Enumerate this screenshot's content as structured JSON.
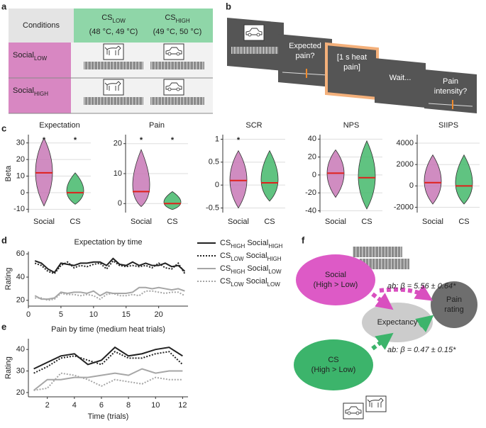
{
  "panels": [
    "a",
    "b",
    "c",
    "d",
    "e",
    "f"
  ],
  "table": {
    "header": [
      "Conditions",
      {
        "name": [
          "CS",
          "LOW"
        ],
        "temps": "(48 °C, 49 °C)"
      },
      {
        "name": [
          "CS",
          "HIGH"
        ],
        "temps": "(49 °C, 50 °C)"
      }
    ],
    "rows": [
      [
        "Social",
        "LOW"
      ],
      [
        "Social",
        "HIGH"
      ]
    ]
  },
  "screens": [
    {
      "lines": [
        "Expected",
        "pain?"
      ]
    },
    {
      "lines": [
        "[1 s heat",
        "pain]"
      ]
    },
    {
      "lines": [
        "Wait..."
      ]
    },
    {
      "lines": [
        "Pain",
        "intensity?"
      ]
    }
  ],
  "chart_data": [
    {
      "type": "violin",
      "title": "Expectation",
      "y_label": "Beta",
      "categories": [
        "Social",
        "CS"
      ],
      "medians": [
        12,
        0
      ],
      "mins": [
        -8,
        -7
      ],
      "maxs": [
        33,
        12
      ],
      "colors": [
        "#c878b6",
        "#44b86b"
      ],
      "annotations": [
        "*",
        "*"
      ],
      "ylim": [
        -12,
        35
      ],
      "yticks": [
        -10,
        0,
        10,
        20,
        30
      ],
      "grid": true
    },
    {
      "type": "violin",
      "title": "Pain",
      "categories": [
        "Social",
        "CS"
      ],
      "medians": [
        4,
        0
      ],
      "mins": [
        -1,
        -2
      ],
      "maxs": [
        18,
        4
      ],
      "colors": [
        "#c878b6",
        "#44b86b"
      ],
      "annotations": [
        "*",
        "*"
      ],
      "ylim": [
        -3,
        23
      ],
      "yticks": [
        0,
        10,
        20
      ],
      "grid": true
    },
    {
      "type": "violin",
      "title": "SCR",
      "categories": [
        "Social",
        "CS"
      ],
      "medians": [
        0.1,
        0.05
      ],
      "mins": [
        -0.5,
        -0.35
      ],
      "maxs": [
        0.75,
        0.75
      ],
      "colors": [
        "#c878b6",
        "#44b86b"
      ],
      "annotations": [
        "*",
        null
      ],
      "ylim": [
        -0.6,
        1.1
      ],
      "yticks": [
        -0.5,
        0,
        0.5,
        1
      ],
      "grid": true
    },
    {
      "type": "violin",
      "title": "NPS",
      "categories": [
        "Social",
        "CS"
      ],
      "medians": [
        2,
        -3
      ],
      "mins": [
        -25,
        -38
      ],
      "maxs": [
        28,
        38
      ],
      "colors": [
        "#c878b6",
        "#44b86b"
      ],
      "annotations": [
        null,
        null
      ],
      "ylim": [
        -42,
        45
      ],
      "yticks": [
        -40,
        -20,
        0,
        20,
        40
      ],
      "grid": true
    },
    {
      "type": "violin",
      "title": "SIIPS",
      "categories": [
        "Social",
        "CS"
      ],
      "medians": [
        300,
        0
      ],
      "mins": [
        -1700,
        -1700
      ],
      "maxs": [
        2900,
        2900
      ],
      "colors": [
        "#c878b6",
        "#44b86b"
      ],
      "annotations": [
        null,
        null
      ],
      "ylim": [
        -2500,
        4800
      ],
      "yticks": [
        -2000,
        0,
        2000,
        4000
      ],
      "grid": true
    },
    {
      "type": "line",
      "title": "Expectation by time",
      "y_label": "Rating",
      "x": [
        1,
        2,
        3,
        4,
        5,
        6,
        7,
        8,
        9,
        10,
        11,
        12,
        13,
        14,
        15,
        16,
        17,
        18,
        19,
        20,
        21,
        22,
        23,
        24
      ],
      "xlim": [
        0,
        24.5
      ],
      "xticks": [
        0,
        5,
        10,
        15,
        20
      ],
      "ylim": [
        15,
        62
      ],
      "yticks": [
        20,
        40,
        60
      ],
      "legend": "right",
      "series": [
        {
          "name": [
            "CS",
            "HIGH",
            " Social",
            "HIGH"
          ],
          "color": "#222222",
          "line_style": "solid",
          "values": [
            54,
            52,
            47,
            44,
            52,
            51,
            50,
            52,
            52,
            53,
            53,
            50,
            56,
            51,
            50,
            53,
            50,
            52,
            50,
            50,
            52,
            49,
            50,
            45
          ]
        },
        {
          "name": [
            "CS",
            "LOW",
            " Social",
            "HIGH"
          ],
          "color": "#222222",
          "line_style": "dotted",
          "values": [
            52,
            50,
            45,
            43,
            50,
            53,
            48,
            50,
            49,
            51,
            52,
            47,
            54,
            50,
            49,
            50,
            49,
            50,
            48,
            52,
            48,
            47,
            52,
            43
          ]
        },
        {
          "name": [
            "CS",
            "HIGH",
            " Social",
            "LOW"
          ],
          "color": "#a6a6a6",
          "line_style": "solid",
          "values": [
            24,
            21,
            21,
            22,
            27,
            26,
            27,
            27,
            26,
            28,
            24,
            27,
            26,
            26,
            26,
            27,
            31,
            31,
            30,
            31,
            30,
            29,
            30,
            28
          ]
        },
        {
          "name": [
            "CS",
            "LOW",
            " Social",
            "LOW"
          ],
          "color": "#a6a6a6",
          "line_style": "dotted",
          "values": [
            22,
            22,
            20,
            21,
            26,
            25,
            25,
            24,
            25,
            24,
            21,
            25,
            26,
            24,
            24,
            25,
            24,
            28,
            28,
            27,
            26,
            27,
            27,
            24
          ]
        }
      ]
    },
    {
      "type": "line",
      "title": "Pain by time (medium heat trials)",
      "y_label": "Rating",
      "x_label": "Time (trials)",
      "x": [
        1,
        2,
        3,
        4,
        5,
        6,
        7,
        8,
        9,
        10,
        11,
        12
      ],
      "xlim": [
        0.6,
        12.4
      ],
      "xticks": [
        2,
        4,
        6,
        8,
        10,
        12
      ],
      "ylim": [
        18,
        45
      ],
      "yticks": [
        20,
        30,
        40
      ],
      "series": [
        {
          "color": "#222222",
          "line_style": "solid",
          "values": [
            31,
            34,
            37,
            38,
            33,
            35,
            41,
            37,
            38,
            40,
            41,
            37
          ]
        },
        {
          "color": "#222222",
          "line_style": "dotted",
          "values": [
            29,
            32,
            36,
            37,
            35,
            33,
            39,
            36,
            36,
            38,
            39,
            33
          ]
        },
        {
          "color": "#a6a6a6",
          "line_style": "solid",
          "values": [
            21,
            26,
            26,
            27,
            27,
            28,
            29,
            28,
            31,
            29,
            30,
            30
          ]
        },
        {
          "color": "#a6a6a6",
          "line_style": "dotted",
          "values": [
            21,
            22,
            29,
            28,
            26,
            23,
            26,
            25,
            24,
            27,
            26,
            26
          ]
        }
      ]
    }
  ],
  "mediation": {
    "social": [
      "Social",
      "(High > Low)"
    ],
    "cs": [
      "CS",
      "(High > Low)"
    ],
    "mediator": "Expectancy",
    "outcome": [
      "Pain",
      "rating"
    ],
    "social_path": "ab: β = 5.56 ± 0.64*",
    "cs_path": "ab: β = 0.47 ± 0.15*"
  }
}
